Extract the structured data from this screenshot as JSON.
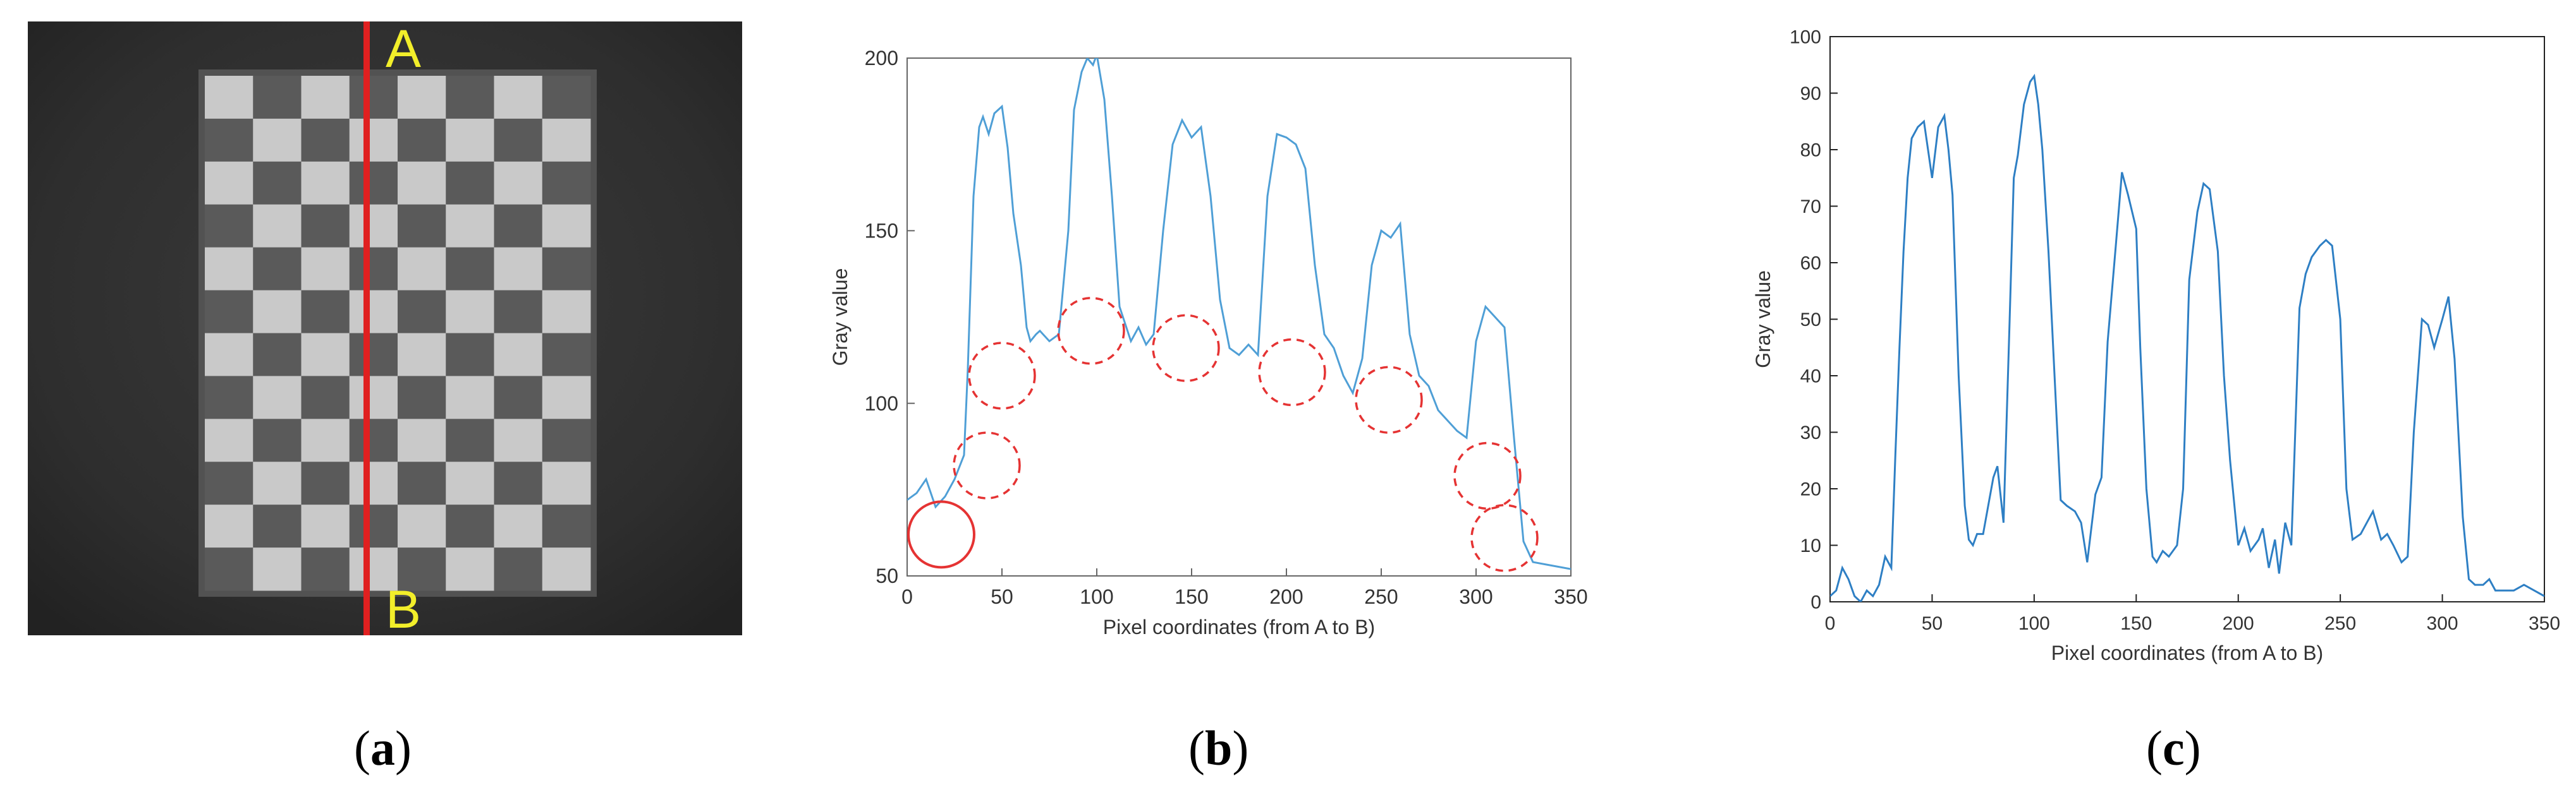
{
  "captions": {
    "a": "a",
    "b": "b",
    "c": "c"
  },
  "panel_a": {
    "label_top": "A",
    "label_bottom": "B",
    "rows": 12,
    "cols": 8,
    "line_color": "#e02020",
    "label_color": "#f2ee2a"
  },
  "chart_data": [
    {
      "type": "line",
      "xlabel": "Pixel coordinates (from A to B)",
      "ylabel": "Gray value",
      "xlim": [
        0,
        350
      ],
      "ylim": [
        50,
        200
      ],
      "xticks": [
        0,
        50,
        100,
        150,
        200,
        250,
        300,
        350
      ],
      "yticks": [
        50,
        100,
        150,
        200
      ],
      "grid": false,
      "line_color": "#4f9fd6",
      "marker_color": "#e53333",
      "series": [
        {
          "x": [
            0,
            5,
            10,
            15,
            20,
            25,
            30,
            32,
            35,
            38,
            40,
            43,
            46,
            50,
            53,
            56,
            60,
            63,
            65,
            68,
            70,
            75,
            80,
            85,
            88,
            92,
            95,
            98,
            100,
            104,
            108,
            112,
            118,
            122,
            126,
            130,
            135,
            140,
            145,
            150,
            155,
            160,
            165,
            170,
            175,
            180,
            185,
            190,
            195,
            200,
            205,
            210,
            215,
            220,
            225,
            230,
            235,
            240,
            245,
            250,
            255,
            260,
            265,
            270,
            275,
            280,
            285,
            290,
            295,
            300,
            305,
            310,
            315,
            320,
            325,
            330,
            340,
            350
          ],
          "y": [
            72,
            74,
            78,
            70,
            73,
            78,
            85,
            110,
            160,
            180,
            183,
            178,
            184,
            186,
            174,
            155,
            140,
            122,
            118,
            120,
            121,
            118,
            120,
            150,
            185,
            196,
            200,
            198,
            201,
            188,
            160,
            128,
            118,
            122,
            117,
            120,
            150,
            175,
            182,
            177,
            180,
            160,
            130,
            116,
            114,
            117,
            114,
            160,
            178,
            177,
            175,
            168,
            140,
            120,
            116,
            108,
            103,
            113,
            140,
            150,
            148,
            152,
            120,
            108,
            105,
            98,
            95,
            92,
            90,
            118,
            128,
            125,
            122,
            90,
            60,
            54,
            53,
            52
          ]
        }
      ],
      "markers": [
        {
          "x": 18,
          "y": 62,
          "style": "solid"
        },
        {
          "x": 42,
          "y": 82,
          "style": "dashed"
        },
        {
          "x": 50,
          "y": 108,
          "style": "dashed"
        },
        {
          "x": 97,
          "y": 121,
          "style": "dashed"
        },
        {
          "x": 147,
          "y": 116,
          "style": "dashed"
        },
        {
          "x": 203,
          "y": 109,
          "style": "dashed"
        },
        {
          "x": 254,
          "y": 101,
          "style": "dashed"
        },
        {
          "x": 306,
          "y": 79,
          "style": "dashed"
        },
        {
          "x": 315,
          "y": 61,
          "style": "dashed"
        }
      ]
    },
    {
      "type": "line",
      "xlabel": "Pixel coordinates (from A to B)",
      "ylabel": "Gray value",
      "xlim": [
        0,
        350
      ],
      "ylim": [
        0,
        100
      ],
      "xticks": [
        0,
        50,
        100,
        150,
        200,
        250,
        300,
        350
      ],
      "yticks": [
        0,
        10,
        20,
        30,
        40,
        50,
        60,
        70,
        80,
        90,
        100
      ],
      "grid": false,
      "line_color": "#2e7fc4",
      "series": [
        {
          "x": [
            0,
            3,
            6,
            9,
            12,
            15,
            18,
            21,
            24,
            27,
            30,
            32,
            34,
            36,
            38,
            40,
            43,
            46,
            50,
            53,
            56,
            58,
            60,
            63,
            66,
            68,
            70,
            72,
            75,
            78,
            80,
            82,
            85,
            88,
            90,
            92,
            95,
            98,
            100,
            102,
            104,
            107,
            110,
            113,
            116,
            120,
            123,
            126,
            130,
            133,
            136,
            140,
            143,
            146,
            150,
            152,
            155,
            158,
            160,
            163,
            166,
            170,
            173,
            176,
            180,
            183,
            186,
            190,
            193,
            196,
            200,
            203,
            206,
            210,
            212,
            215,
            218,
            220,
            223,
            226,
            230,
            233,
            236,
            240,
            243,
            246,
            250,
            253,
            256,
            260,
            263,
            266,
            270,
            273,
            276,
            280,
            283,
            286,
            290,
            293,
            296,
            300,
            303,
            306,
            310,
            313,
            316,
            320,
            323,
            326,
            330,
            335,
            340,
            345,
            350
          ],
          "y": [
            1,
            2,
            6,
            4,
            1,
            0,
            2,
            1,
            3,
            8,
            6,
            26,
            45,
            62,
            75,
            82,
            84,
            85,
            75,
            84,
            86,
            80,
            72,
            40,
            17,
            11,
            10,
            12,
            12,
            18,
            22,
            24,
            14,
            50,
            75,
            79,
            88,
            92,
            93,
            88,
            80,
            62,
            40,
            18,
            17,
            16,
            14,
            7,
            19,
            22,
            46,
            63,
            76,
            72,
            66,
            45,
            20,
            8,
            7,
            9,
            8,
            10,
            20,
            57,
            69,
            74,
            73,
            62,
            40,
            25,
            10,
            13,
            9,
            11,
            13,
            6,
            11,
            5,
            14,
            10,
            52,
            58,
            61,
            63,
            64,
            63,
            50,
            20,
            11,
            12,
            14,
            16,
            11,
            12,
            10,
            7,
            8,
            30,
            50,
            49,
            45,
            50,
            54,
            43,
            15,
            4,
            3,
            3,
            4,
            2,
            2,
            2,
            3,
            2,
            1
          ]
        }
      ]
    }
  ]
}
